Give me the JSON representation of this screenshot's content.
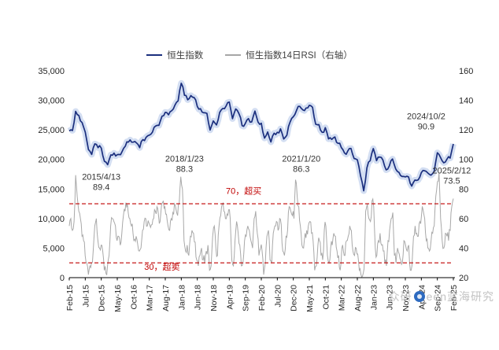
{
  "legend": [
    {
      "label": "恒生指数",
      "color": "#1B2F7E"
    },
    {
      "label": "恒生指数14日RSI（右轴）",
      "color": "#A6A6A6"
    }
  ],
  "watermark": {
    "text_left": "众研",
    "text_right": "een蓝海研究",
    "icon_color": "#2E6BC0"
  },
  "chart_data": {
    "type": "line",
    "title": "",
    "x_start": "Feb-15",
    "x_end": "Feb-25",
    "x_tick_labels": [
      "Feb-15",
      "Jul-15",
      "Dec-15",
      "May-16",
      "Oct-16",
      "Mar-17",
      "Aug-17",
      "Jan-18",
      "Jun-18",
      "Nov-18",
      "Apr-19",
      "Sep-19",
      "Feb-20",
      "Jul-20",
      "Dec-20",
      "May-21",
      "Oct-21",
      "Mar-22",
      "Aug-22",
      "Jan-23",
      "Jun-23",
      "Nov-23",
      "Apr-24",
      "Sep-24",
      "Feb-25"
    ],
    "left_axis": {
      "min": 0,
      "max": 35000,
      "step": 5000,
      "tick_labels": [
        "0",
        "5,000",
        "10,000",
        "15,000",
        "20,000",
        "25,000",
        "30,000",
        "35,000"
      ]
    },
    "right_axis": {
      "min": 20,
      "max": 160,
      "step": 20,
      "tick_labels": [
        "20",
        "40",
        "60",
        "80",
        "100",
        "120",
        "140",
        "160"
      ]
    },
    "series": [
      {
        "name": "恒生指数",
        "axis": "left",
        "color": "#1B2F7E",
        "band_color": "#CBD8F0",
        "sampling": "monthly",
        "values": [
          24823,
          24901,
          28133,
          27424,
          26250,
          24636,
          21671,
          20846,
          22640,
          21996,
          21914,
          19683,
          19112,
          20777,
          21067,
          20815,
          20794,
          21891,
          22977,
          23297,
          22935,
          22790,
          22001,
          23361,
          23741,
          24112,
          24615,
          25661,
          25765,
          27324,
          27970,
          27554,
          28246,
          29177,
          29919,
          32887,
          30845,
          30093,
          30808,
          30469,
          28955,
          28583,
          27889,
          27789,
          24980,
          26507,
          25846,
          27942,
          28633,
          29051,
          29699,
          26901,
          28543,
          27778,
          25725,
          26092,
          26907,
          26346,
          28190,
          26313,
          26130,
          23603,
          24644,
          22961,
          24427,
          24595,
          25177,
          23459,
          24107,
          26341,
          27231,
          28284,
          28980,
          28378,
          28705,
          29152,
          28828,
          25961,
          25879,
          24576,
          25377,
          23475,
          23398,
          23802,
          22713,
          21997,
          21089,
          21415,
          21860,
          20157,
          19954,
          17223,
          14687,
          18597,
          19781,
          21842,
          19786,
          20400,
          19895,
          18234,
          18916,
          20079,
          18382,
          17810,
          17112,
          17043,
          17047,
          15485,
          16511,
          16541,
          17763,
          18080,
          17719,
          17345,
          17989,
          21134,
          20317,
          19424,
          20060,
          20225,
          22621
        ]
      },
      {
        "name": "恒生指数14日RSI（右轴）",
        "axis": "right",
        "color": "#A8A8A8",
        "sampling": "semi-monthly",
        "values": [
          55,
          60,
          52,
          58,
          89.4,
          75,
          65,
          60,
          48,
          45,
          35,
          30,
          22,
          28,
          30,
          38,
          55,
          60,
          45,
          40,
          42,
          38,
          25,
          23,
          28,
          35,
          55,
          60,
          58,
          55,
          45,
          48,
          42,
          50,
          62,
          65,
          68,
          64,
          60,
          55,
          50,
          46,
          48,
          42,
          38,
          40,
          52,
          58,
          60,
          55,
          57,
          54,
          56,
          60,
          65,
          68,
          62,
          58,
          70,
          72,
          68,
          63,
          55,
          52,
          60,
          64,
          70,
          66,
          62,
          70,
          88.3,
          80,
          45,
          38,
          42,
          35,
          48,
          52,
          50,
          44,
          32,
          28,
          35,
          40,
          32,
          30,
          38,
          42,
          25,
          28,
          48,
          55,
          40,
          35,
          55,
          62,
          70,
          65,
          60,
          63,
          66,
          60,
          32,
          28,
          45,
          58,
          50,
          42,
          28,
          30,
          45,
          48,
          55,
          52,
          45,
          40,
          60,
          65,
          50,
          35,
          40,
          38,
          22,
          30,
          48,
          52,
          32,
          30,
          50,
          55,
          58,
          52,
          60,
          56,
          38,
          35,
          48,
          52,
          68,
          65,
          62,
          60,
          86.3,
          75,
          68,
          55,
          42,
          40,
          50,
          52,
          55,
          58,
          50,
          45,
          25,
          28,
          42,
          45,
          35,
          32,
          52,
          55,
          35,
          30,
          40,
          42,
          50,
          48,
          38,
          35,
          25,
          40,
          38,
          35,
          45,
          48,
          55,
          52,
          38,
          35,
          40,
          36,
          25,
          22,
          21,
          26,
          65,
          70,
          60,
          58,
          72,
          68,
          40,
          35,
          45,
          50,
          42,
          38,
          30,
          28,
          45,
          52,
          60,
          64,
          35,
          30,
          40,
          36,
          32,
          30,
          45,
          42,
          38,
          42,
          25,
          28,
          48,
          55,
          50,
          48,
          58,
          62,
          66,
          60,
          45,
          40,
          38,
          45,
          50,
          55,
          75,
          85,
          90.9,
          60,
          45,
          40,
          50,
          48,
          45,
          52,
          68,
          73.5
        ]
      }
    ],
    "reference_lines": [
      {
        "value": 70,
        "axis": "right",
        "style": "dashed",
        "color": "#C00000",
        "label": "70，超买",
        "label_xi": 54.5,
        "label_yv": 14200
      },
      {
        "value": 30,
        "axis": "right",
        "style": "dashed",
        "color": "#C00000",
        "label": "30，超卖",
        "label_xi": 29,
        "label_yv": 1300
      }
    ],
    "annotations": [
      {
        "line1": "2015/4/13",
        "line2": "89.4",
        "xi": 10,
        "yv": 16600
      },
      {
        "line1": "2018/1/23",
        "line2": "88.3",
        "xi": 36,
        "yv": 19600
      },
      {
        "line1": "2021/1/20",
        "line2": "86.3",
        "xi": 72.5,
        "yv": 19600
      },
      {
        "line1": "2024/10/2",
        "line2": "90.9",
        "xi": 111.5,
        "yv": 26800
      },
      {
        "line1": "2025/2/12",
        "line2": "73.5",
        "xi": 119.5,
        "yv": 17600
      }
    ],
    "legend_position": "top-center",
    "grid": false
  }
}
